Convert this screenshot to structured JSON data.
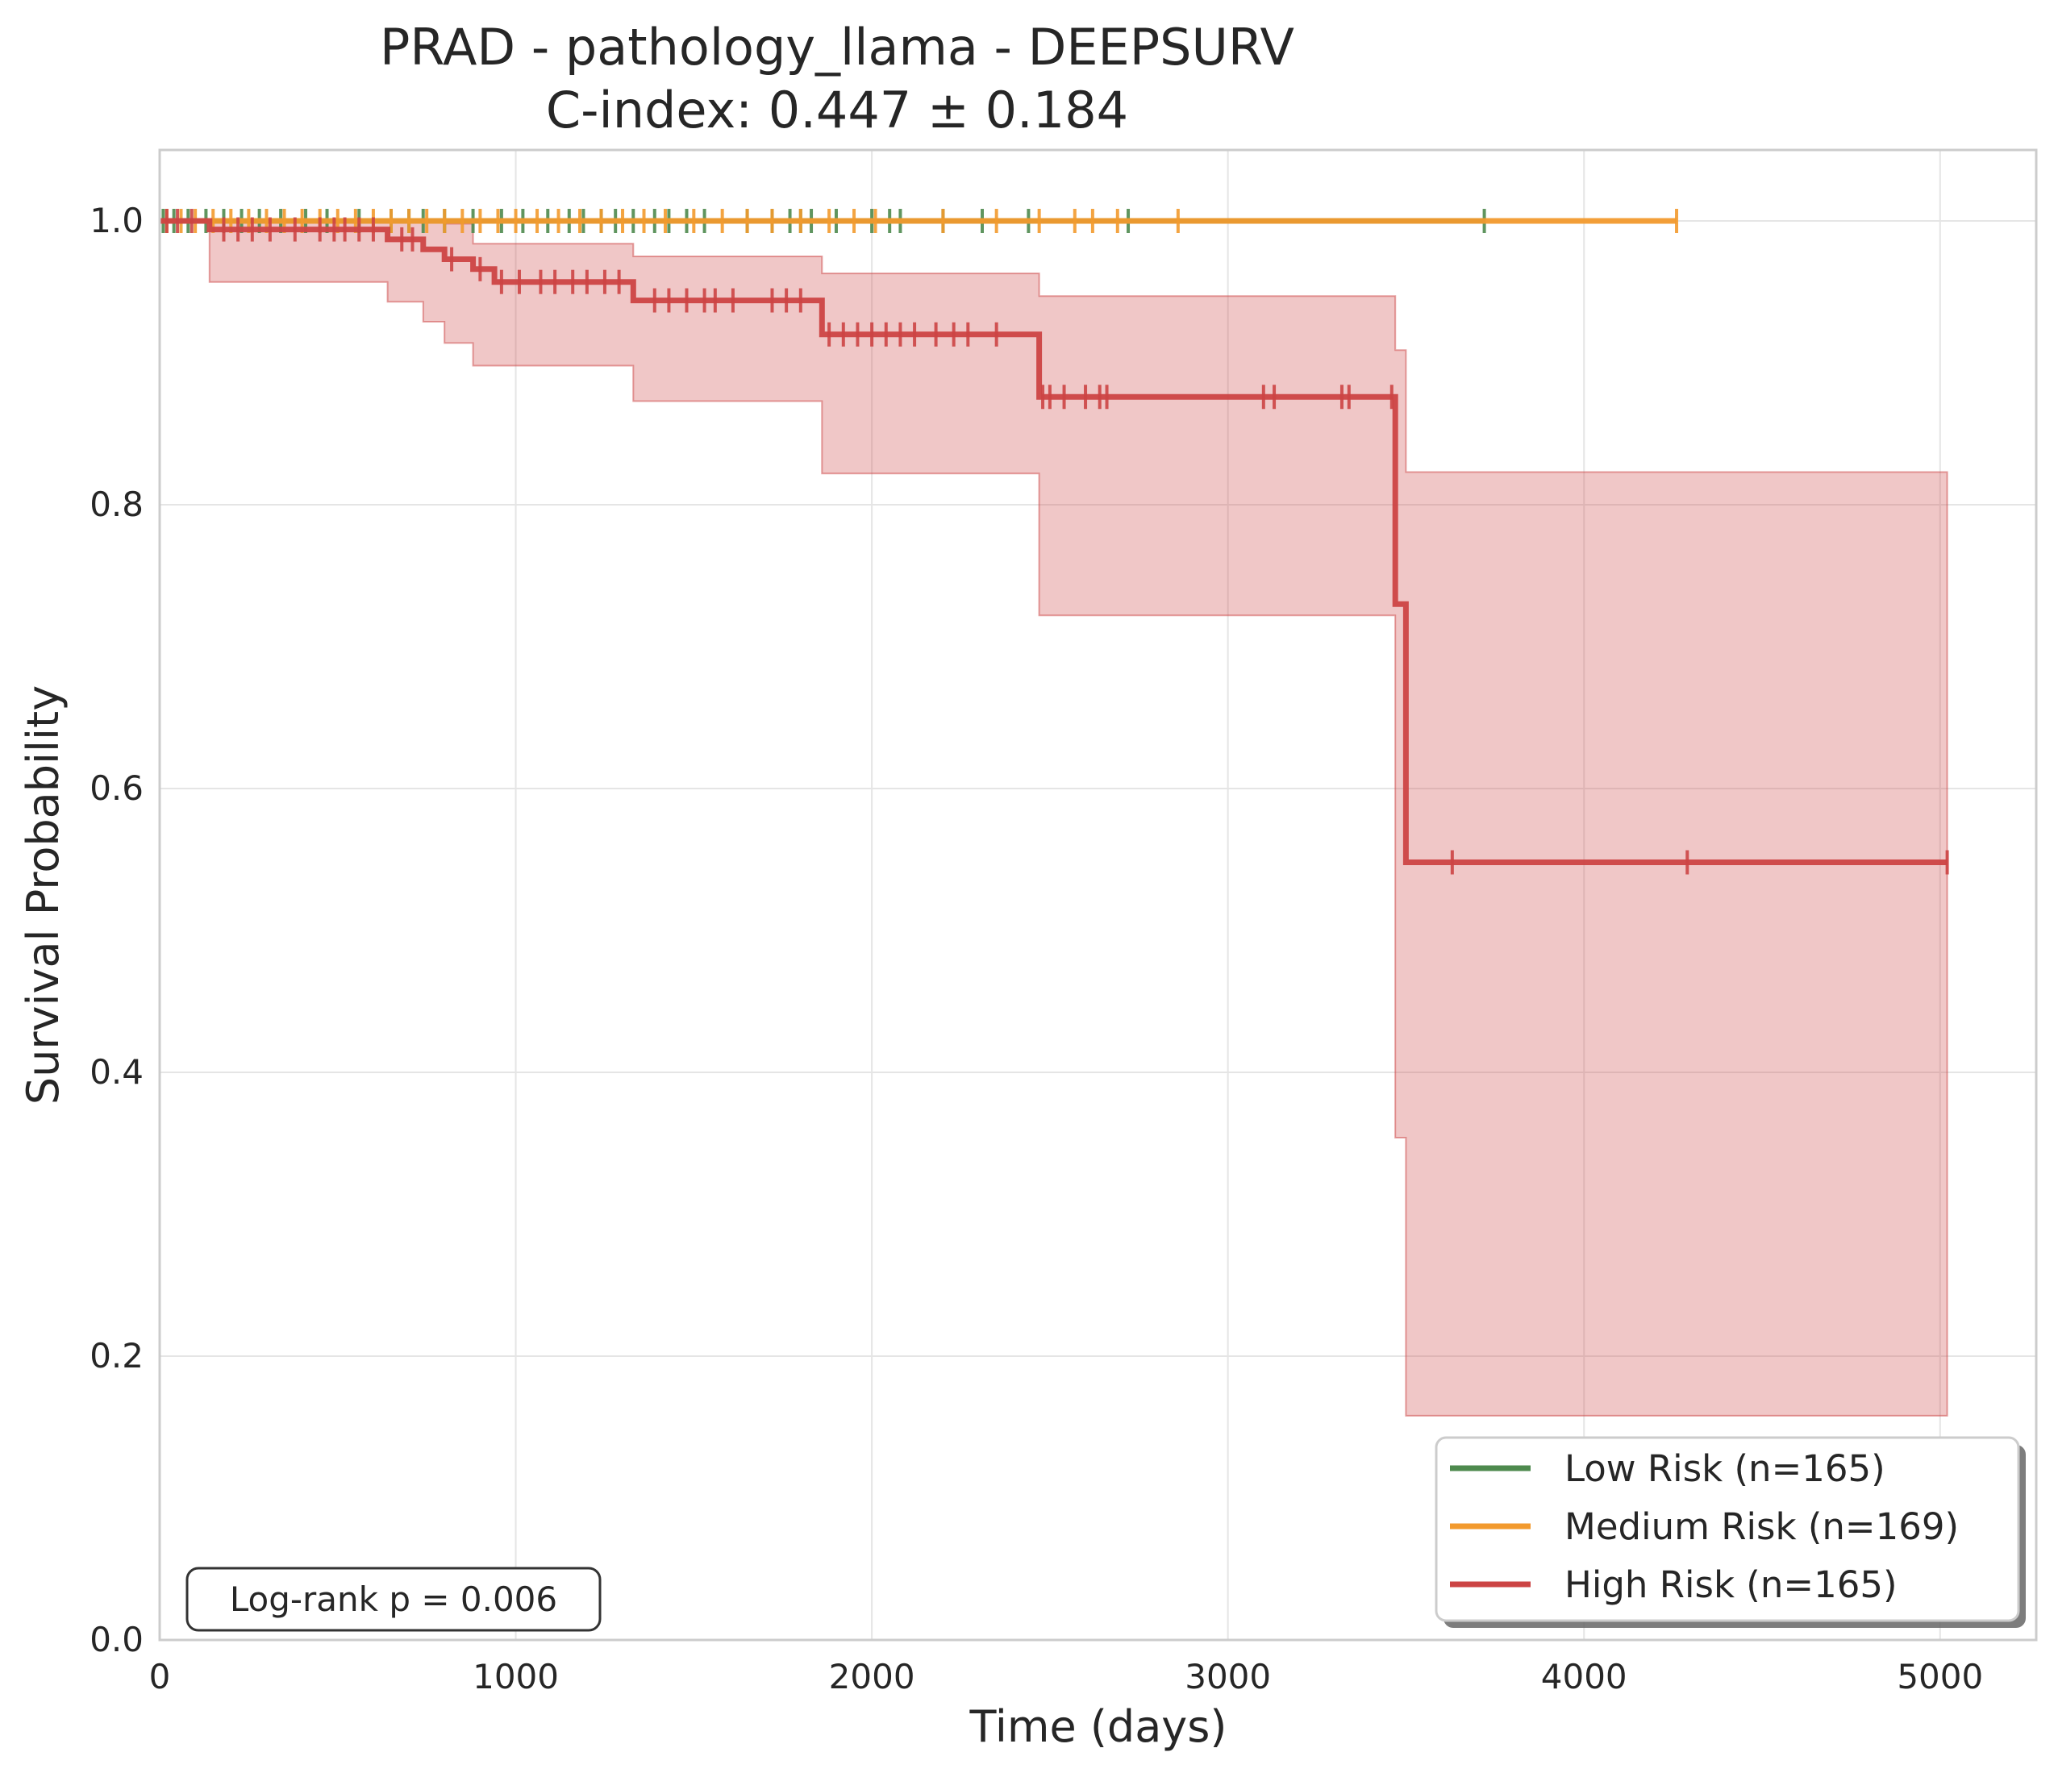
{
  "chart_data": {
    "type": "line",
    "title": "PRAD - pathology_llama - DEEPSURV",
    "subtitle": "C-index: 0.447 ± 0.184",
    "xlabel": "Time (days)",
    "ylabel": "Survival Probability",
    "xlim": [
      0,
      5270
    ],
    "ylim": [
      0,
      1.05
    ],
    "xticks": [
      0,
      1000,
      2000,
      3000,
      4000,
      5000
    ],
    "xtick_labels": [
      "0",
      "1000",
      "2000",
      "3000",
      "4000",
      "5000"
    ],
    "yticks": [
      0.0,
      0.2,
      0.4,
      0.6,
      0.8,
      1.0
    ],
    "ytick_labels": [
      "0.0",
      "0.2",
      "0.4",
      "0.6",
      "0.8",
      "1.0"
    ],
    "grid": true,
    "legend_position": "lower-right",
    "annotation": "Log-rank p = 0.006",
    "series": [
      {
        "name": "Low Risk (n=165)",
        "color": "#4e8a4e",
        "steps": [
          [
            0,
            1.0
          ],
          [
            3720,
            1.0
          ]
        ],
        "ci_lower": [],
        "ci_upper": [],
        "censor_times": [
          10,
          40,
          80,
          130,
          180,
          230,
          280,
          340,
          410,
          470,
          560,
          650,
          700,
          740,
          800,
          880,
          960,
          1020,
          1090,
          1150,
          1190,
          1240,
          1280,
          1330,
          1390,
          1430,
          1480,
          1530,
          1650,
          1720,
          1770,
          1800,
          1830,
          1900,
          2000,
          2050,
          2080,
          2200,
          2310,
          2440,
          2720,
          3720
        ]
      },
      {
        "name": "Medium Risk (n=169)",
        "color": "#f29a2e",
        "steps": [
          [
            0,
            1.0
          ],
          [
            4260,
            1.0
          ]
        ],
        "ci_lower": [],
        "ci_upper": [],
        "censor_times": [
          20,
          60,
          100,
          150,
          200,
          250,
          300,
          350,
          400,
          450,
          500,
          550,
          600,
          650,
          700,
          750,
          800,
          850,
          900,
          950,
          1000,
          1060,
          1120,
          1180,
          1240,
          1300,
          1360,
          1420,
          1500,
          1580,
          1650,
          1720,
          1800,
          1880,
          1950,
          2010,
          2200,
          2350,
          2470,
          2570,
          2620,
          2690,
          2860,
          4260
        ]
      },
      {
        "name": "High Risk (n=165)",
        "color": "#cc4444",
        "steps": [
          [
            0,
            1.0
          ],
          [
            140,
            0.994
          ],
          [
            640,
            0.987
          ],
          [
            740,
            0.98
          ],
          [
            800,
            0.973
          ],
          [
            880,
            0.966
          ],
          [
            940,
            0.957
          ],
          [
            1330,
            0.944
          ],
          [
            1860,
            0.92
          ],
          [
            2470,
            0.876
          ],
          [
            3470,
            0.73
          ],
          [
            3500,
            0.548
          ],
          [
            5020,
            0.548
          ]
        ],
        "ci_lower": [
          1.0,
          0.957,
          0.943,
          0.929,
          0.914,
          0.898,
          0.898,
          0.873,
          0.822,
          0.722,
          0.354,
          0.158,
          0.158
        ],
        "ci_upper": [
          1.0,
          1.0,
          1.0,
          1.0,
          0.998,
          0.984,
          0.984,
          0.975,
          0.963,
          0.947,
          0.909,
          0.823,
          0.823
        ],
        "censor_times": [
          20,
          50,
          90,
          180,
          220,
          260,
          310,
          380,
          450,
          490,
          520,
          560,
          600,
          680,
          710,
          820,
          900,
          960,
          1010,
          1070,
          1110,
          1160,
          1200,
          1250,
          1290,
          1390,
          1430,
          1480,
          1530,
          1560,
          1610,
          1720,
          1760,
          1800,
          1880,
          1920,
          1960,
          2000,
          2040,
          2080,
          2120,
          2180,
          2230,
          2270,
          2350,
          2480,
          2500,
          2540,
          2600,
          2640,
          2660,
          3100,
          3130,
          3320,
          3340,
          3460,
          3630,
          4290,
          5020
        ]
      }
    ]
  }
}
